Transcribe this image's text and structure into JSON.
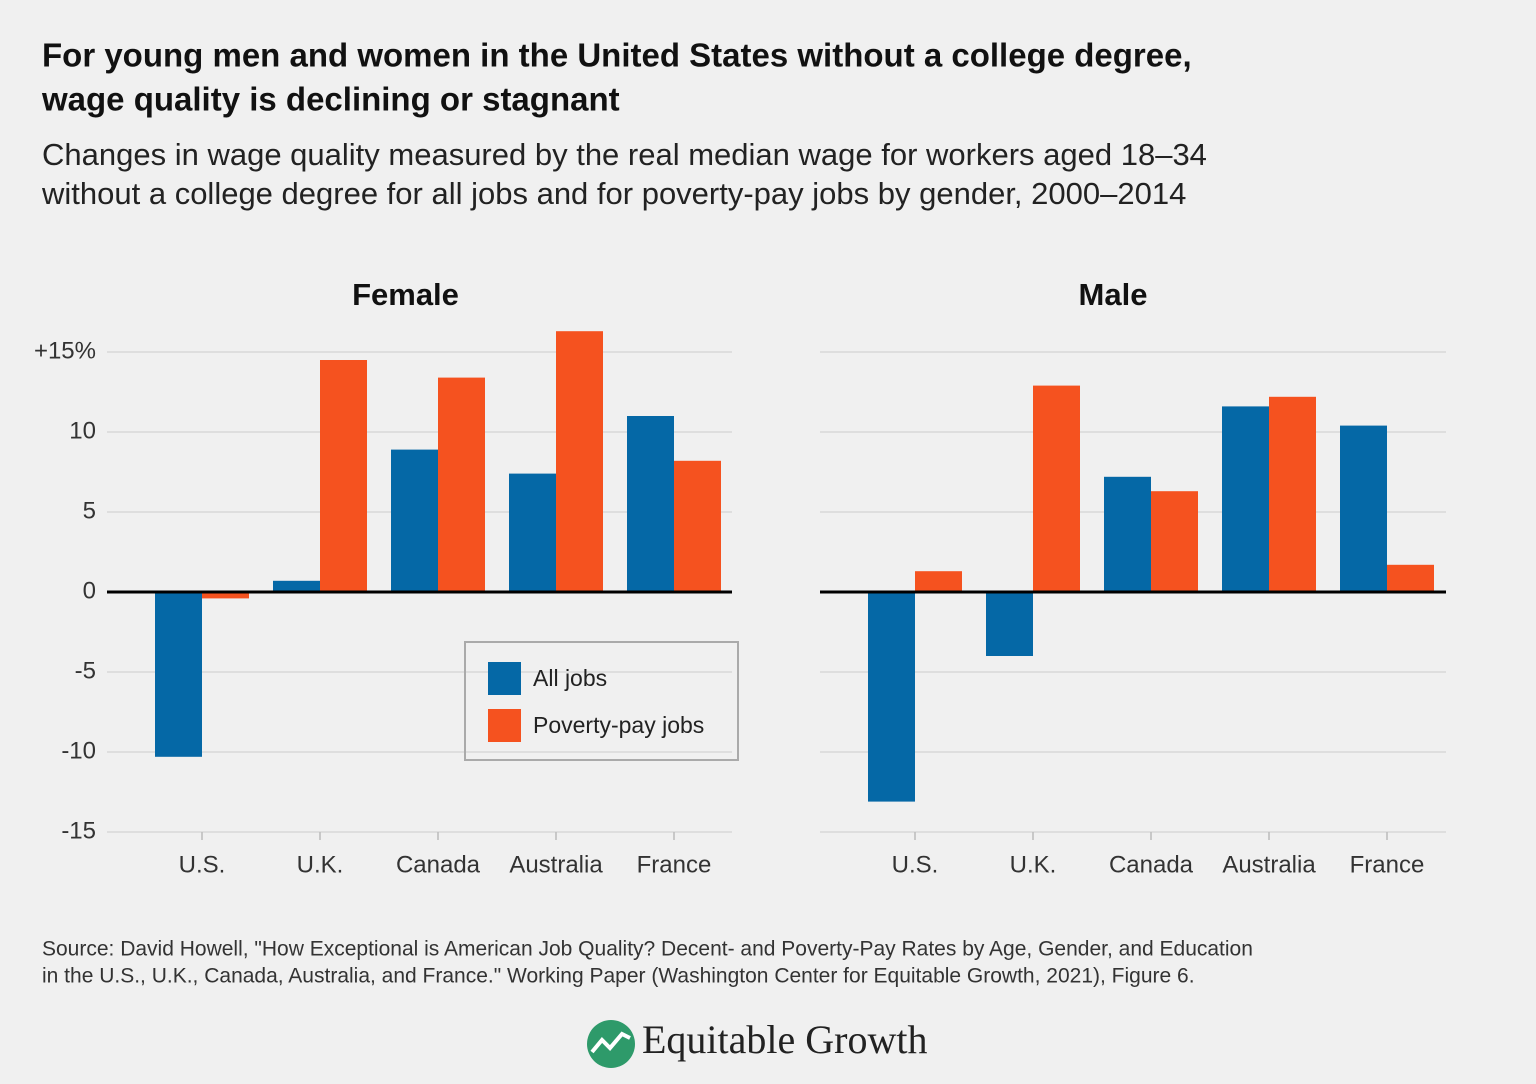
{
  "title": [
    "For young men and women in the United States without a college degree,",
    "wage quality is declining or stagnant"
  ],
  "subtitle": [
    "Changes in wage quality measured by the real median wage for workers aged 18–34",
    "without a college degree for all jobs and for poverty-pay jobs by gender, 2000–2014"
  ],
  "source": [
    "Source: David Howell, \"How Exceptional is American Job Quality? Decent- and Poverty-Pay Rates by Age, Gender, and Education",
    "in the U.S., U.K., Canada, Australia, and France.\" Working Paper (Washington Center for Equitable Growth, 2021), Figure 6."
  ],
  "brand": "Equitable Growth",
  "chart_data": [
    {
      "type": "bar",
      "title": "Female",
      "categories": [
        "U.S.",
        "U.K.",
        "Canada",
        "Australia",
        "France"
      ],
      "series": [
        {
          "name": "All jobs",
          "color": "#0568a6",
          "values": [
            -10.3,
            0.7,
            8.9,
            7.4,
            11.0
          ]
        },
        {
          "name": "Poverty-pay jobs",
          "color": "#f5521f",
          "values": [
            -0.4,
            14.5,
            13.4,
            16.3,
            8.2
          ]
        }
      ],
      "ylim": [
        -15,
        17
      ],
      "yticks": [
        {
          "value": 15,
          "label": "+15%"
        },
        10,
        5,
        0,
        -5,
        -10,
        -15
      ],
      "grid": true,
      "legend": "lower right"
    },
    {
      "type": "bar",
      "title": "Male",
      "categories": [
        "U.S.",
        "U.K.",
        "Canada",
        "Australia",
        "France"
      ],
      "series": [
        {
          "color": "#0568a6",
          "values": [
            -13.1,
            -4.0,
            7.2,
            11.6,
            10.4
          ]
        },
        {
          "color": "#f5521f",
          "values": [
            1.3,
            12.9,
            6.3,
            12.2,
            1.7
          ]
        }
      ],
      "ylim": [
        -15,
        17
      ],
      "yticks": [
        15,
        10,
        5,
        0,
        -5,
        -10,
        -15
      ],
      "grid": true
    }
  ]
}
